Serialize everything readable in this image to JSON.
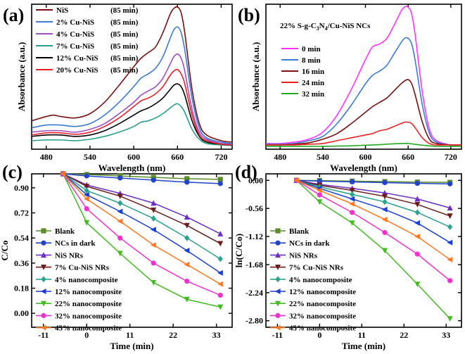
{
  "chart_data": [
    {
      "id": "a",
      "type": "line",
      "panel_label": "(a)",
      "xlabel": "Wavelength (nm)",
      "ylabel": "Absorbance (a.u.)",
      "xlim": [
        460,
        735
      ],
      "ylim": [
        0,
        1.02
      ],
      "xticks": [
        "480",
        "540",
        "600",
        "660",
        "720"
      ],
      "legend_position": "top-left",
      "series": [
        {
          "name": "NiS",
          "time_label": "(85 min)",
          "color": "#7a1010",
          "x": [
            460,
            480,
            490,
            500,
            520,
            540,
            560,
            580,
            600,
            610,
            620,
            630,
            640,
            650,
            655,
            660,
            665,
            670,
            680,
            690,
            700,
            720,
            735
          ],
          "y": [
            0.2,
            0.23,
            0.24,
            0.23,
            0.22,
            0.25,
            0.33,
            0.45,
            0.58,
            0.64,
            0.68,
            0.72,
            0.82,
            0.95,
            0.99,
            1.0,
            0.96,
            0.82,
            0.42,
            0.18,
            0.1,
            0.06,
            0.05
          ]
        },
        {
          "name": "2% Cu-NiS",
          "time_label": "(85 min)",
          "color": "#3a7bd5",
          "x": [
            460,
            480,
            500,
            520,
            540,
            560,
            580,
            600,
            610,
            620,
            630,
            640,
            650,
            655,
            660,
            665,
            670,
            680,
            690,
            700,
            720,
            735
          ],
          "y": [
            0.15,
            0.17,
            0.17,
            0.16,
            0.18,
            0.24,
            0.33,
            0.44,
            0.5,
            0.53,
            0.57,
            0.65,
            0.78,
            0.84,
            0.86,
            0.82,
            0.7,
            0.36,
            0.15,
            0.08,
            0.05,
            0.04
          ]
        },
        {
          "name": "4% Cu-NiS",
          "time_label": "(85 min)",
          "color": "#9b4fc9",
          "x": [
            460,
            480,
            500,
            520,
            540,
            560,
            580,
            600,
            610,
            620,
            630,
            640,
            650,
            655,
            660,
            665,
            670,
            680,
            690,
            700,
            720,
            735
          ],
          "y": [
            0.12,
            0.13,
            0.13,
            0.12,
            0.14,
            0.18,
            0.25,
            0.33,
            0.38,
            0.41,
            0.44,
            0.5,
            0.6,
            0.65,
            0.67,
            0.64,
            0.55,
            0.28,
            0.12,
            0.07,
            0.04,
            0.035
          ]
        },
        {
          "name": "7% Cu-NiS",
          "time_label": "(85 min)",
          "color": "#26a08a",
          "x": [
            460,
            480,
            500,
            520,
            540,
            560,
            580,
            600,
            610,
            620,
            630,
            640,
            650,
            655,
            660,
            665,
            670,
            680,
            690,
            700,
            720,
            735
          ],
          "y": [
            0.06,
            0.065,
            0.065,
            0.06,
            0.07,
            0.09,
            0.12,
            0.16,
            0.19,
            0.2,
            0.22,
            0.25,
            0.29,
            0.31,
            0.32,
            0.3,
            0.26,
            0.14,
            0.07,
            0.04,
            0.03,
            0.025
          ]
        },
        {
          "name": "12% Cu-NiS",
          "time_label": "(85 min)",
          "color": "#000000",
          "x": [
            460,
            480,
            500,
            520,
            540,
            560,
            580,
            600,
            610,
            620,
            630,
            640,
            650,
            655,
            660,
            665,
            670,
            680,
            690,
            700,
            720,
            735
          ],
          "y": [
            0.09,
            0.1,
            0.1,
            0.09,
            0.1,
            0.13,
            0.18,
            0.24,
            0.27,
            0.29,
            0.32,
            0.36,
            0.42,
            0.45,
            0.46,
            0.44,
            0.38,
            0.2,
            0.09,
            0.05,
            0.035,
            0.03
          ]
        },
        {
          "name": "20% Cu-NiS",
          "time_label": "(85 min)",
          "color": "#e8202a",
          "x": [
            460,
            480,
            500,
            520,
            540,
            560,
            580,
            600,
            610,
            620,
            630,
            640,
            650,
            655,
            660,
            665,
            670,
            680,
            690,
            700,
            720,
            735
          ],
          "y": [
            0.1,
            0.115,
            0.115,
            0.105,
            0.12,
            0.16,
            0.22,
            0.3,
            0.34,
            0.36,
            0.39,
            0.44,
            0.52,
            0.55,
            0.56,
            0.53,
            0.46,
            0.24,
            0.1,
            0.06,
            0.035,
            0.03
          ]
        }
      ]
    },
    {
      "id": "b",
      "type": "line",
      "panel_label": "(b)",
      "annotation": "22% S-g-C",
      "annotation_sub": "3",
      "annotation_rest": "N",
      "annotation_sub2": "4",
      "annotation_end": "/Cu-NiS NCs",
      "xlabel": "Wavelength (nm)",
      "ylabel": "Absorbance (a.u.)",
      "xlim": [
        460,
        735
      ],
      "ylim": [
        0,
        1.02
      ],
      "xticks": [
        "480",
        "540",
        "600",
        "660",
        "720"
      ],
      "legend_position": "upper-left",
      "series": [
        {
          "name": "0 min",
          "color": "#ff33ff",
          "x": [
            460,
            480,
            500,
            520,
            540,
            560,
            580,
            600,
            610,
            620,
            630,
            640,
            650,
            655,
            660,
            665,
            670,
            680,
            690,
            700,
            720,
            735
          ],
          "y": [
            0.04,
            0.04,
            0.05,
            0.07,
            0.12,
            0.24,
            0.42,
            0.63,
            0.72,
            0.74,
            0.78,
            0.87,
            0.97,
            1.0,
            1.0,
            0.95,
            0.8,
            0.4,
            0.14,
            0.06,
            0.03,
            0.03
          ]
        },
        {
          "name": "8 min",
          "color": "#3a7bd5",
          "x": [
            460,
            480,
            500,
            520,
            540,
            560,
            580,
            600,
            610,
            620,
            630,
            640,
            650,
            655,
            660,
            665,
            670,
            680,
            690,
            700,
            720,
            735
          ],
          "y": [
            0.035,
            0.035,
            0.04,
            0.06,
            0.09,
            0.18,
            0.31,
            0.46,
            0.52,
            0.55,
            0.59,
            0.67,
            0.75,
            0.78,
            0.78,
            0.74,
            0.62,
            0.31,
            0.11,
            0.05,
            0.03,
            0.03
          ]
        },
        {
          "name": "16 min",
          "color": "#7a1010",
          "x": [
            460,
            480,
            500,
            520,
            540,
            560,
            580,
            600,
            610,
            620,
            630,
            640,
            650,
            655,
            660,
            665,
            670,
            680,
            690,
            700,
            720,
            735
          ],
          "y": [
            0.03,
            0.03,
            0.035,
            0.045,
            0.07,
            0.11,
            0.18,
            0.26,
            0.3,
            0.33,
            0.36,
            0.41,
            0.46,
            0.48,
            0.49,
            0.46,
            0.38,
            0.19,
            0.07,
            0.04,
            0.03,
            0.03
          ]
        },
        {
          "name": "24 min",
          "color": "#ee2222",
          "x": [
            460,
            480,
            500,
            520,
            540,
            560,
            580,
            600,
            610,
            620,
            630,
            640,
            650,
            655,
            660,
            665,
            670,
            680,
            690,
            700,
            720,
            735
          ],
          "y": [
            0.03,
            0.03,
            0.03,
            0.035,
            0.04,
            0.06,
            0.08,
            0.1,
            0.11,
            0.13,
            0.14,
            0.16,
            0.18,
            0.19,
            0.19,
            0.18,
            0.15,
            0.08,
            0.04,
            0.03,
            0.03,
            0.03
          ]
        },
        {
          "name": "32 min",
          "color": "#22aa22",
          "x": [
            460,
            480,
            500,
            520,
            540,
            560,
            580,
            600,
            620,
            640,
            660,
            680,
            700,
            720,
            735
          ],
          "y": [
            0.02,
            0.02,
            0.02,
            0.02,
            0.02,
            0.022,
            0.024,
            0.028,
            0.032,
            0.038,
            0.04,
            0.028,
            0.02,
            0.02,
            0.02
          ]
        }
      ]
    },
    {
      "id": "c",
      "type": "line",
      "panel_label": "(c)",
      "xlabel": "Time (min)",
      "ylabel": "C/Co",
      "xlim": [
        -14,
        37
      ],
      "ylim": [
        -0.1,
        1.0
      ],
      "xticks": [
        -11,
        0,
        11,
        22,
        33
      ],
      "yticks": [
        0.0,
        0.18,
        0.36,
        0.54,
        0.72,
        0.9
      ],
      "ytick_labels": [
        "0.00",
        "0.18",
        "0.36",
        "0.54",
        "0.72",
        "0.90"
      ],
      "legend_position": "lower-left",
      "x": [
        -6,
        0,
        8.5,
        17,
        25.5,
        34
      ],
      "series": [
        {
          "name": "Blank",
          "color": "#5b8c2a",
          "marker": "square",
          "values": [
            1.0,
            0.995,
            0.985,
            0.975,
            0.965,
            0.96
          ]
        },
        {
          "name": "NCs in dark",
          "color": "#2244cc",
          "marker": "circle",
          "values": [
            1.0,
            0.985,
            0.97,
            0.955,
            0.94,
            0.93
          ]
        },
        {
          "name": "NiS NRs",
          "color": "#6a2fc4",
          "marker": "triangle-up",
          "values": [
            1.0,
            0.92,
            0.86,
            0.79,
            0.69,
            0.57
          ]
        },
        {
          "name": "7% Cu-NiS NRs",
          "color": "#6b1d1d",
          "marker": "triangle-down",
          "values": [
            1.0,
            0.91,
            0.84,
            0.74,
            0.63,
            0.5
          ]
        },
        {
          "name": "4% nanocomposite",
          "color": "#2aa38c",
          "marker": "diamond",
          "values": [
            1.0,
            0.88,
            0.79,
            0.68,
            0.54,
            0.39
          ]
        },
        {
          "name": "12% nanocomposite",
          "color": "#1a3fd6",
          "marker": "triangle-left",
          "values": [
            1.0,
            0.85,
            0.73,
            0.6,
            0.45,
            0.29
          ]
        },
        {
          "name": "22% nanocomposite",
          "color": "#44bb22",
          "marker": "triangle-down",
          "values": [
            1.0,
            0.65,
            0.43,
            0.22,
            0.1,
            0.045
          ]
        },
        {
          "name": "32% nanocomposite",
          "color": "#ee33cc",
          "marker": "circle",
          "values": [
            1.0,
            0.75,
            0.54,
            0.36,
            0.23,
            0.13
          ]
        },
        {
          "name": "45% nanocomposite",
          "color": "#ff7a22",
          "marker": "triangle-left",
          "values": [
            1.0,
            0.82,
            0.66,
            0.49,
            0.35,
            0.21
          ]
        }
      ]
    },
    {
      "id": "d",
      "type": "line",
      "panel_label": "(d)",
      "xlabel": "Time (min)",
      "ylabel": "ln(C/Co)",
      "xlim": [
        -14,
        37
      ],
      "ylim": [
        -2.93,
        0.13
      ],
      "xticks": [
        -11,
        0,
        11,
        22,
        33
      ],
      "yticks": [
        0.0,
        -0.56,
        -1.12,
        -1.68,
        -2.24,
        -2.8
      ],
      "ytick_labels": [
        "0.00",
        "-0.56",
        "-1.12",
        "-1.68",
        "-2.24",
        "-2.80"
      ],
      "legend_position": "lower-left",
      "x": [
        -6,
        0,
        8.5,
        17,
        25.5,
        34
      ],
      "series": [
        {
          "name": "Blank",
          "color": "#5b8c2a",
          "marker": "square",
          "values": [
            0.0,
            -0.005,
            -0.015,
            -0.025,
            -0.035,
            -0.04
          ]
        },
        {
          "name": "NCs in dark",
          "color": "#2244cc",
          "marker": "circle",
          "values": [
            0.0,
            -0.015,
            -0.03,
            -0.045,
            -0.06,
            -0.07
          ]
        },
        {
          "name": "NiS NRs",
          "color": "#6a2fc4",
          "marker": "triangle-up",
          "values": [
            0.0,
            -0.08,
            -0.16,
            -0.25,
            -0.37,
            -0.55
          ]
        },
        {
          "name": "7% Cu-NiS NRs",
          "color": "#6b1d1d",
          "marker": "triangle-down",
          "values": [
            0.0,
            -0.1,
            -0.2,
            -0.32,
            -0.48,
            -0.71
          ]
        },
        {
          "name": "4% nanocomposite",
          "color": "#2aa38c",
          "marker": "diamond",
          "values": [
            0.0,
            -0.13,
            -0.28,
            -0.43,
            -0.64,
            -0.93
          ]
        },
        {
          "name": "12% nanocomposite",
          "color": "#1a3fd6",
          "marker": "triangle-left",
          "values": [
            0.0,
            -0.16,
            -0.37,
            -0.58,
            -0.85,
            -1.24
          ]
        },
        {
          "name": "22% nanocomposite",
          "color": "#44bb22",
          "marker": "triangle-down",
          "values": [
            0.0,
            -0.43,
            -0.85,
            -1.4,
            -2.07,
            -2.76
          ]
        },
        {
          "name": "32% nanocomposite",
          "color": "#ee33cc",
          "marker": "circle",
          "values": [
            0.0,
            -0.29,
            -0.64,
            -1.04,
            -1.47,
            -2.0
          ]
        },
        {
          "name": "45% nanocomposite",
          "color": "#ff7a22",
          "marker": "triangle-left",
          "values": [
            0.0,
            -0.2,
            -0.47,
            -0.78,
            -1.12,
            -1.58
          ]
        }
      ]
    }
  ]
}
